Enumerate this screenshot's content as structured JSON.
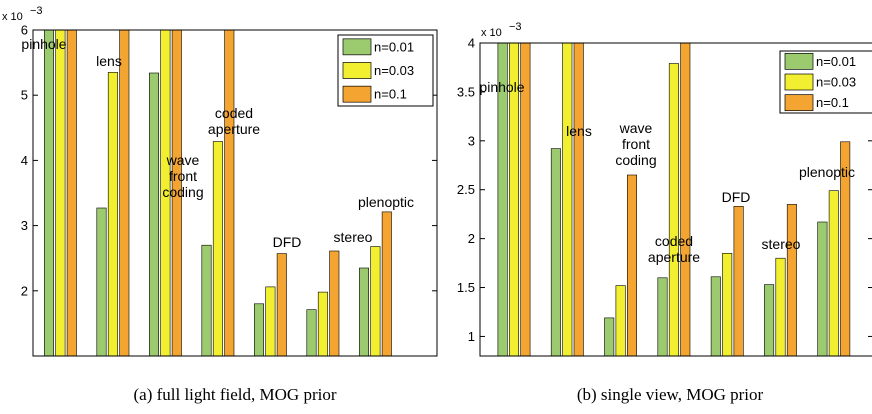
{
  "chart_data": [
    {
      "type": "bar",
      "caption": "(a) full light field, MOG prior",
      "exponent_label": "x 10",
      "exponent_power": "−3",
      "categories": [
        {
          "lines": [
            "pinhole"
          ]
        },
        {
          "lines": [
            "lens"
          ]
        },
        {
          "lines": [
            "wave",
            "front",
            "coding"
          ]
        },
        {
          "lines": [
            "coded",
            "aperture"
          ]
        },
        {
          "lines": [
            "DFD"
          ]
        },
        {
          "lines": [
            "stereo"
          ]
        },
        {
          "lines": [
            "plenoptic"
          ]
        }
      ],
      "series": [
        {
          "name": "n=0.01",
          "color": "#9ccb6f",
          "values": [
            6.2,
            3.27,
            5.34,
            2.7,
            1.8,
            1.71,
            2.35
          ]
        },
        {
          "name": "n=0.03",
          "color": "#f2ef30",
          "values": [
            6.2,
            5.35,
            6.2,
            4.29,
            2.06,
            1.98,
            2.68
          ]
        },
        {
          "name": "n=0.1",
          "color": "#f4a531",
          "values": [
            6.2,
            6.2,
            6.2,
            6.2,
            2.57,
            2.61,
            3.21
          ]
        }
      ],
      "yticks": [
        "2",
        "3",
        "4",
        "5",
        "6"
      ],
      "ylim": [
        1,
        6
      ],
      "legend_position": "top-right",
      "grid": false
    },
    {
      "type": "bar",
      "caption": "(b) single view, MOG prior",
      "exponent_label": "x 10",
      "exponent_power": "−3",
      "categories": [
        {
          "lines": [
            "pinhole"
          ]
        },
        {
          "lines": [
            "lens"
          ]
        },
        {
          "lines": [
            "wave",
            "front",
            "coding"
          ]
        },
        {
          "lines": [
            "coded",
            "aperture"
          ]
        },
        {
          "lines": [
            "DFD"
          ]
        },
        {
          "lines": [
            "stereo"
          ]
        },
        {
          "lines": [
            "plenoptic"
          ]
        }
      ],
      "series": [
        {
          "name": "n=0.01",
          "color": "#9ccb6f",
          "values": [
            4.1,
            2.92,
            1.19,
            1.6,
            1.61,
            1.53,
            2.17
          ]
        },
        {
          "name": "n=0.03",
          "color": "#f2ef30",
          "values": [
            4.1,
            4.1,
            1.52,
            3.79,
            1.85,
            1.8,
            2.49
          ]
        },
        {
          "name": "n=0.1",
          "color": "#f4a531",
          "values": [
            4.1,
            4.1,
            2.65,
            4.1,
            2.33,
            2.35,
            2.99
          ]
        }
      ],
      "yticks": [
        "1",
        "1.5",
        "2",
        "2.5",
        "3",
        "3.5",
        "4"
      ],
      "ylim": [
        0.8,
        4
      ],
      "legend_position": "top-right",
      "grid": false
    }
  ]
}
